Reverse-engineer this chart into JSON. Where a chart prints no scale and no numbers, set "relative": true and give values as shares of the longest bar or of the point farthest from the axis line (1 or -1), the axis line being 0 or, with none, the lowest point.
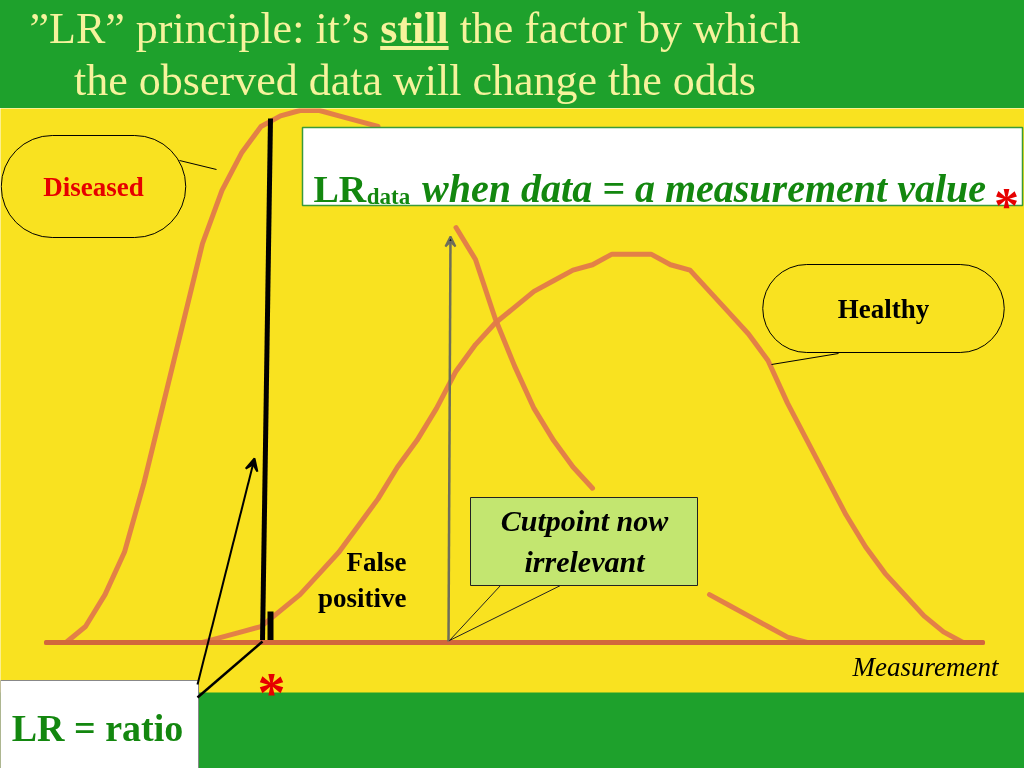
{
  "chart_data": {
    "type": "line",
    "title": "”LR” principle: it’s still the factor by which the observed data will change the odds",
    "xlabel": "Measurement",
    "relative": true,
    "tick_labels": false,
    "categories": [
      null,
      null,
      null,
      null,
      null,
      null,
      null,
      null,
      null,
      null,
      null,
      null,
      null,
      null,
      null,
      null,
      null,
      null,
      null,
      null,
      null,
      null,
      null,
      null,
      null,
      null,
      null,
      null,
      null,
      null,
      null,
      null,
      null,
      null,
      null,
      null,
      null,
      null,
      null,
      null,
      null,
      null,
      null,
      null,
      null,
      null,
      null,
      null,
      null
    ],
    "series": [
      {
        "name": "Diseased",
        "color": "#e27a4a",
        "values": [
          0,
          0,
          0.03,
          0.09,
          0.17,
          0.3,
          0.45,
          0.6,
          0.75,
          0.85,
          0.92,
          0.97,
          0.99,
          1.0,
          1.0,
          0.99,
          0.98,
          0.97,
          null,
          null,
          null,
          0.78,
          0.72,
          0.61,
          0.52,
          0.44,
          0.38,
          0.33,
          0.29,
          null,
          null,
          null,
          null,
          null,
          0.09,
          0.07,
          0.05,
          0.03,
          0.01,
          0,
          0,
          0,
          0,
          0,
          0,
          0,
          0,
          0,
          0
        ]
      },
      {
        "name": "Healthy",
        "color": "#e27a4a",
        "values": [
          0,
          0,
          0,
          0,
          0,
          0,
          0,
          0,
          0,
          0.01,
          0.02,
          0.03,
          0.06,
          0.09,
          0.13,
          0.17,
          0.22,
          0.27,
          0.33,
          0.38,
          0.44,
          0.51,
          0.56,
          0.6,
          0.63,
          0.66,
          0.68,
          0.7,
          0.71,
          0.73,
          0.73,
          0.73,
          0.71,
          0.7,
          0.66,
          0.62,
          0.58,
          0.53,
          0.45,
          0.38,
          0.31,
          0.24,
          0.18,
          0.13,
          0.09,
          0.05,
          0.02,
          0,
          0
        ]
      }
    ],
    "annotations": [
      "LR$_{data}$ when data = a measurement value",
      "*",
      "Cutpoint now irrelevant",
      "False positive",
      "*",
      "LR = ratio"
    ]
  }
}
